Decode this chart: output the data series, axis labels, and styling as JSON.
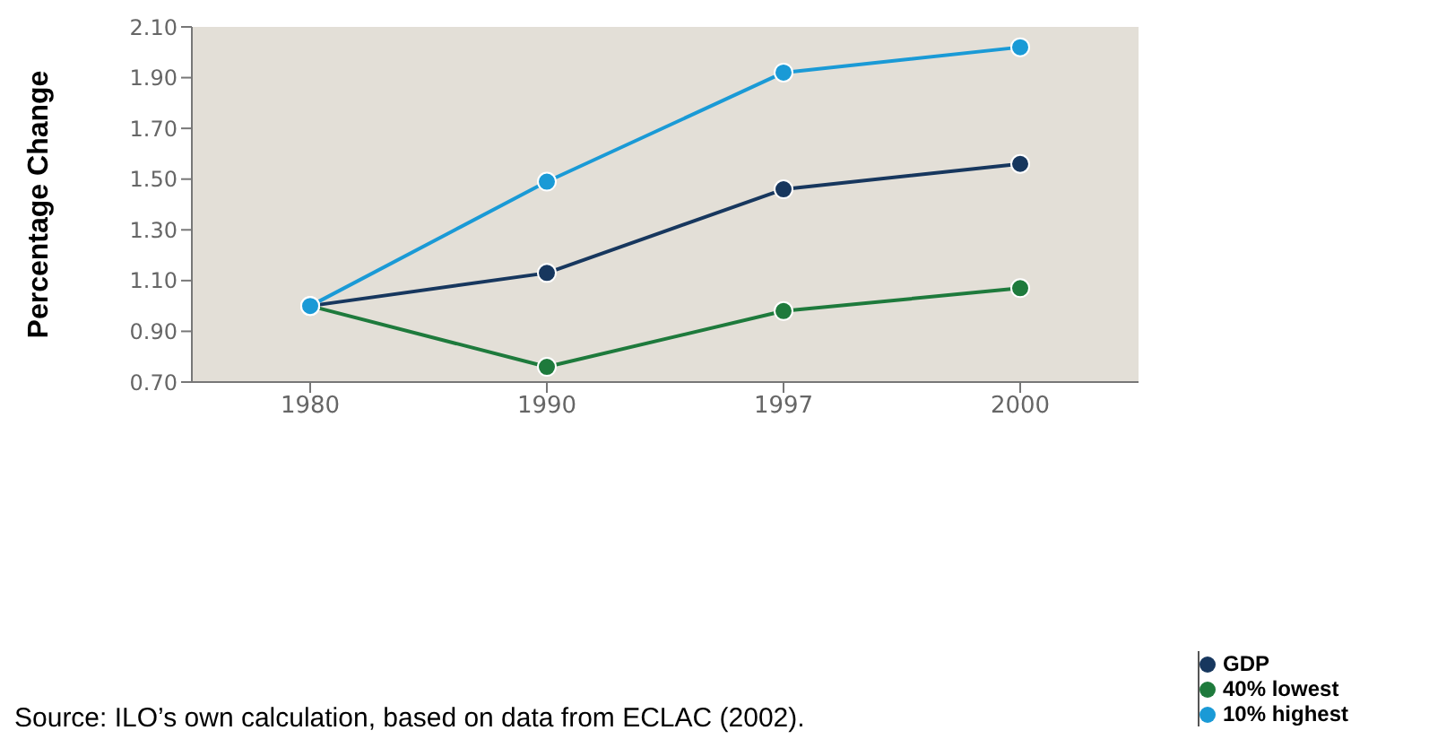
{
  "chart_data": {
    "type": "line",
    "ylabel": "Percentage Change",
    "categories": [
      "1980",
      "1990",
      "1997",
      "2000"
    ],
    "series": [
      {
        "name": "GDP",
        "color": "#17375e",
        "values": [
          1.0,
          1.13,
          1.46,
          1.56
        ]
      },
      {
        "name": "40% lowest",
        "color": "#1e7a3c",
        "values": [
          1.0,
          0.76,
          0.98,
          1.07
        ]
      },
      {
        "name": "10% highest",
        "color": "#1a9ad6",
        "values": [
          1.0,
          1.49,
          1.92,
          2.02
        ]
      }
    ],
    "ylim": [
      0.7,
      2.1
    ],
    "yticks": [
      {
        "value": 0.7,
        "label": "0.70"
      },
      {
        "value": 0.9,
        "label": "0.90"
      },
      {
        "value": 1.1,
        "label": "1.10"
      },
      {
        "value": 1.3,
        "label": "1.30"
      },
      {
        "value": 1.5,
        "label": "1.50"
      },
      {
        "value": 1.7,
        "label": "1.70"
      },
      {
        "value": 1.9,
        "label": "1.90"
      },
      {
        "value": 2.1,
        "label": "2.10"
      }
    ],
    "grid": false,
    "legend": "bottom right",
    "marker": "circle",
    "line_style": "solid",
    "annotations": [
      "Source: ILO’s own calculation, based on data from ECLAC (2002)."
    ]
  }
}
